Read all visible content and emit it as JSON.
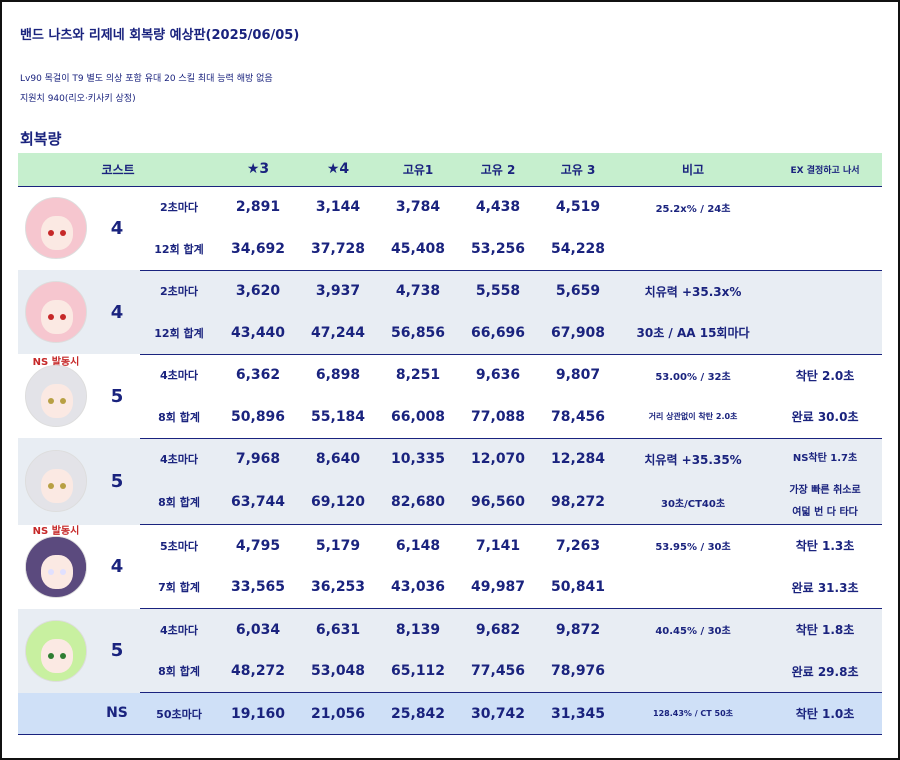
{
  "title": "밴드 나츠와 리제네 회복량 예상판(2025/06/05)",
  "subtitle1": "Lv90 목걸이 T9 별도 의상 포함 유대 20 스킬 최대 능력 해방 없음",
  "subtitle2": "지원치 940(리오·키사키 상정)",
  "section_title": "회복량",
  "headers": {
    "cost": "코스트",
    "star3": "★3",
    "star4": "★4",
    "unique1": "고유1",
    "unique2": "고유 2",
    "unique3": "고유 3",
    "note": "비고",
    "ex": "EX 결정하고 나서"
  },
  "groups": [
    {
      "cost": "4",
      "ns_tag": "",
      "avatar": {
        "hair": "#f6c6cf",
        "eye": "#c62828"
      },
      "rows": [
        {
          "label": "2초마다",
          "s3": "2,891",
          "s4": "3,144",
          "u1": "3,784",
          "u2": "4,438",
          "u3": "4,519",
          "note": "25.2x% / 24초",
          "ex": ""
        },
        {
          "label": "12회 합계",
          "s3": "34,692",
          "s4": "37,728",
          "u1": "45,408",
          "u2": "53,256",
          "u3": "54,228",
          "note": "",
          "ex": ""
        }
      ]
    },
    {
      "cost": "4",
      "ns_tag": "NS 발동시",
      "avatar": {
        "hair": "#f6c6cf",
        "eye": "#c62828"
      },
      "rows": [
        {
          "label": "2초마다",
          "s3": "3,620",
          "s4": "3,937",
          "u1": "4,738",
          "u2": "5,558",
          "u3": "5,659",
          "note": "치유력 +35.3x%",
          "ex": ""
        },
        {
          "label": "12회 합계",
          "s3": "43,440",
          "s4": "47,244",
          "u1": "56,856",
          "u2": "66,696",
          "u3": "67,908",
          "note": "30초 / AA 15회마다",
          "ex": ""
        }
      ]
    },
    {
      "cost": "5",
      "ns_tag": "",
      "avatar": {
        "hair": "#e3e3e8",
        "eye": "#b8a044"
      },
      "rows": [
        {
          "label": "4초마다",
          "s3": "6,362",
          "s4": "6,898",
          "u1": "8,251",
          "u2": "9,636",
          "u3": "9,807",
          "note": "53.00% / 32초",
          "ex": "착탄 2.0초"
        },
        {
          "label": "8회 합계",
          "s3": "50,896",
          "s4": "55,184",
          "u1": "66,008",
          "u2": "77,088",
          "u3": "78,456",
          "note": "거리 상관없이 착탄 2.0초",
          "ex": "완료 30.0초"
        }
      ]
    },
    {
      "cost": "5",
      "ns_tag": "NS 발동시",
      "avatar": {
        "hair": "#e3e3e8",
        "eye": "#b8a044"
      },
      "rows": [
        {
          "label": "4초마다",
          "s3": "7,968",
          "s4": "8,640",
          "u1": "10,335",
          "u2": "12,070",
          "u3": "12,284",
          "note": "치유력 +35.35%",
          "ex": "NS착탄 1.7초"
        },
        {
          "label": "8회 합계",
          "s3": "63,744",
          "s4": "69,120",
          "u1": "82,680",
          "u2": "96,560",
          "u3": "98,272",
          "note": "30초/CT40초",
          "ex": "가장 빠른 취소로",
          "ex2": "여덟 번 다 타다"
        }
      ]
    },
    {
      "cost": "4",
      "ns_tag": "",
      "avatar": {
        "hair": "#5b4a7e",
        "eye": "#e0e0ff"
      },
      "rows": [
        {
          "label": "5초마다",
          "s3": "4,795",
          "s4": "5,179",
          "u1": "6,148",
          "u2": "7,141",
          "u3": "7,263",
          "note": "53.95% / 30초",
          "ex": "착탄 1.3초"
        },
        {
          "label": "7회 합계",
          "s3": "33,565",
          "s4": "36,253",
          "u1": "43,036",
          "u2": "49,987",
          "u3": "50,841",
          "note": "",
          "ex": "완료 31.3초"
        }
      ]
    },
    {
      "cost": "5",
      "ns_tag": "",
      "avatar": {
        "hair": "#c8f0a0",
        "eye": "#2e7d32"
      },
      "rows": [
        {
          "label": "4초마다",
          "s3": "6,034",
          "s4": "6,631",
          "u1": "8,139",
          "u2": "9,682",
          "u3": "9,872",
          "note": "40.45% / 30초",
          "ex": "착탄 1.8초"
        },
        {
          "label": "8회 합계",
          "s3": "48,272",
          "s4": "53,048",
          "u1": "65,112",
          "u2": "77,456",
          "u3": "78,976",
          "note": "",
          "ex": "완료 29.8초"
        }
      ]
    }
  ],
  "ns_row": {
    "cost": "NS",
    "label": "50초마다",
    "s3": "19,160",
    "s4": "21,056",
    "u1": "25,842",
    "u2": "30,742",
    "u3": "31,345",
    "note": "128.43% / CT 50초",
    "ex": "착탄 1.0초"
  }
}
